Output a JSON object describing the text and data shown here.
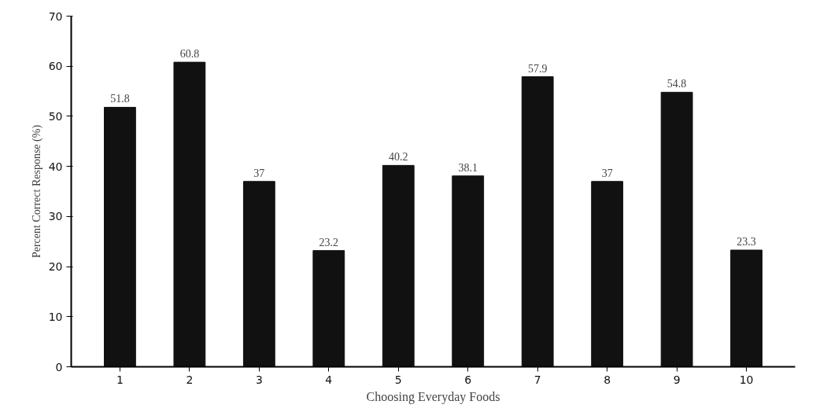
{
  "chart_data": {
    "type": "bar",
    "xlabel": "Choosing Everyday Foods",
    "ylabel": "Percent Correct Response (%)",
    "categories": [
      "1",
      "2",
      "3",
      "4",
      "5",
      "6",
      "7",
      "8",
      "9",
      "10"
    ],
    "values": [
      51.8,
      60.8,
      37,
      23.2,
      40.2,
      38.1,
      57.9,
      37,
      54.8,
      23.3
    ],
    "color": "#111111",
    "ylim": [
      0,
      70
    ],
    "yticks": [
      0,
      10,
      20,
      30,
      40,
      50,
      60,
      70
    ],
    "data_labels": true,
    "grid": false
  }
}
